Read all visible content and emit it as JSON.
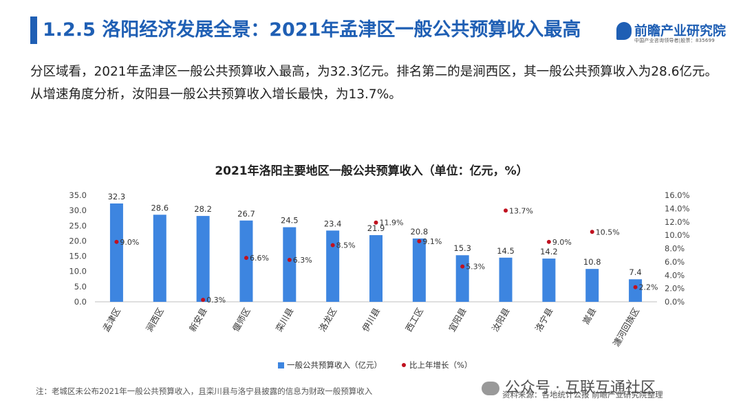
{
  "header": {
    "title": "1.2.5 洛阳经济发展全景：2021年孟津区一般公共预算收入最高",
    "logo_name": "前瞻产业研究院",
    "logo_sub": "中国产业咨询领导者|股票：835699"
  },
  "intro_text": "分区域看，2021年孟津区一般公共预算收入最高，为32.3亿元。排名第二的是涧西区，其一般公共预算收入为28.6亿元。从增速角度分析，汝阳县一般公共预算收入增长最快，为13.7%。",
  "colors": {
    "accent": "#1f5fb4",
    "bar": "#3d85e0",
    "dot": "#c0111f"
  },
  "chart_data": {
    "type": "bar",
    "title": "2021年洛阳主要地区一般公共预算收入（单位：亿元，%）",
    "categories": [
      "孟津区",
      "涧西区",
      "新安县",
      "偃师区",
      "栾川县",
      "洛龙区",
      "伊川县",
      "西工区",
      "宜阳县",
      "汝阳县",
      "洛宁县",
      "嵩县",
      "瀍河回族区"
    ],
    "series": [
      {
        "name": "一般公共预算收入（亿元）",
        "type": "bar",
        "axis": "left",
        "values": [
          32.3,
          28.6,
          28.2,
          26.7,
          24.5,
          23.4,
          21.9,
          20.8,
          15.3,
          14.5,
          14.2,
          10.8,
          7.4
        ],
        "labels": [
          "32.3",
          "28.6",
          "28.2",
          "26.7",
          "24.5",
          "23.4",
          "21.9",
          "20.8",
          "15.3",
          "14.5",
          "14.2",
          "10.8",
          "7.4"
        ]
      },
      {
        "name": "比上年增长（%）",
        "type": "scatter",
        "axis": "right",
        "values": [
          9.0,
          null,
          0.3,
          6.6,
          6.3,
          8.5,
          11.9,
          9.1,
          5.3,
          13.7,
          9.0,
          10.5,
          2.2
        ],
        "labels": [
          "9.0%",
          "",
          "0.3%",
          "6.6%",
          "6.3%",
          "8.5%",
          "11.9%",
          "9.1%",
          "5.3%",
          "13.7%",
          "9.0%",
          "10.5%",
          "2.2%"
        ]
      }
    ],
    "y_left": {
      "min": 0,
      "max": 35,
      "ticks": [
        "0.0",
        "5.0",
        "10.0",
        "15.0",
        "20.0",
        "25.0",
        "30.0",
        "35.0"
      ]
    },
    "y_right": {
      "min": 0,
      "max": 16,
      "ticks": [
        "0.0%",
        "2.0%",
        "4.0%",
        "6.0%",
        "8.0%",
        "10.0%",
        "12.0%",
        "14.0%",
        "16.0%"
      ]
    },
    "legend": [
      "一般公共预算收入（亿元）",
      "比上年增长（%）"
    ]
  },
  "footer": {
    "note": "注：老城区未公布2021年一般公共预算收入，且栾川县与洛宁县披露的信息为财政一般预算收入",
    "source": "资料来源：各地统计公报 前瞻产业研究院整理",
    "wechat": "公众号 · 互联互通社区"
  }
}
